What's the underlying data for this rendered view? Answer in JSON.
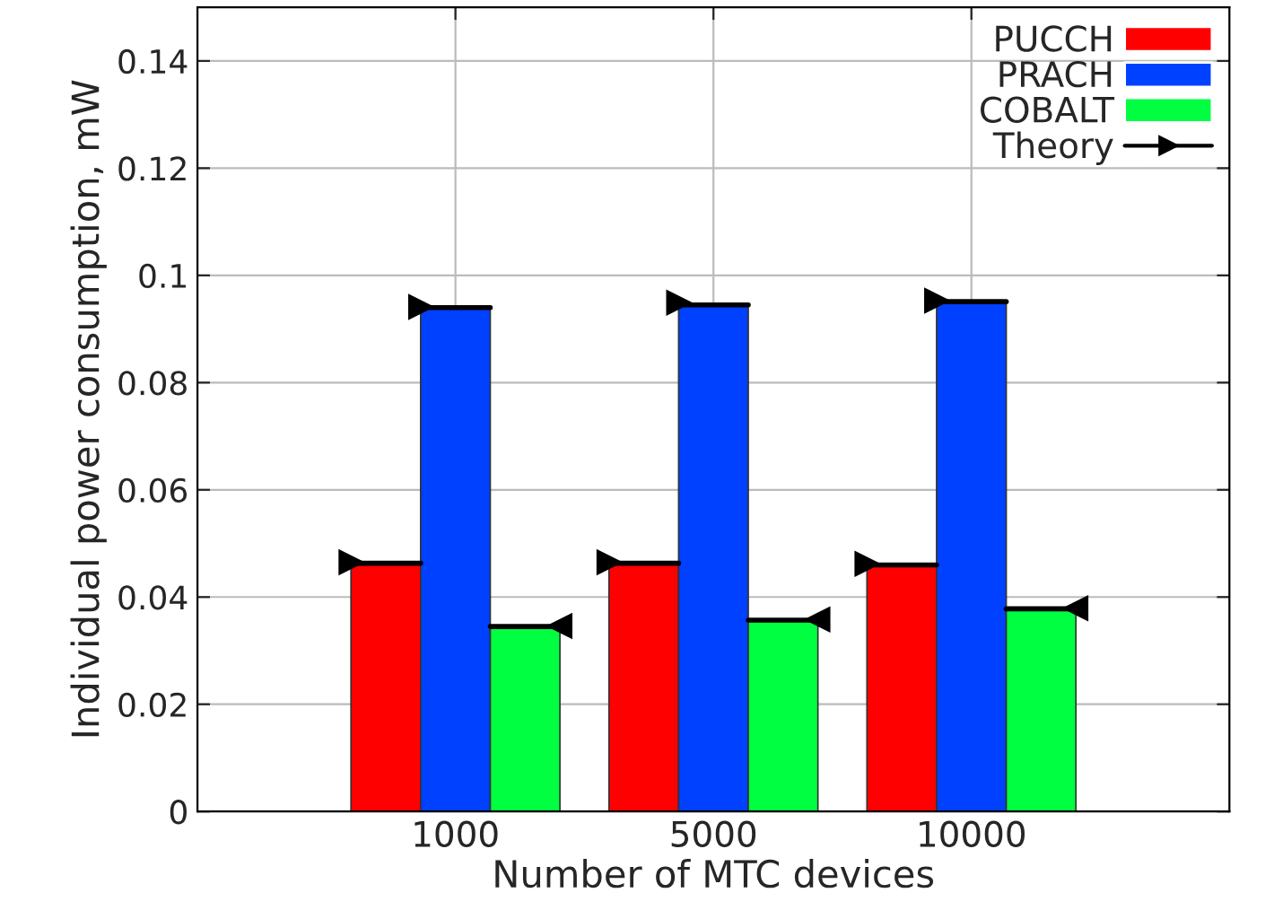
{
  "chart_data": {
    "type": "bar",
    "xlabel": "Number of MTC devices",
    "ylabel": "Individual power consumption, mW",
    "categories": [
      "1000",
      "5000",
      "10000"
    ],
    "series": [
      {
        "name": "PUCCH",
        "color": "#ff0000",
        "values": [
          0.0463,
          0.0463,
          0.046
        ]
      },
      {
        "name": "PRACH",
        "color": "#0040ff",
        "values": [
          0.094,
          0.0945,
          0.0951
        ]
      },
      {
        "name": "COBALT",
        "color": "#00ff40",
        "values": [
          0.0345,
          0.0357,
          0.0378
        ]
      },
      {
        "name": "Theory",
        "type": "scatter",
        "color": "#000000",
        "marker": "triangle",
        "values": [
          0.0465,
          0.0465,
          0.0462
        ]
      },
      {
        "type": "scatter",
        "color": "#000000",
        "marker": "triangle",
        "values": [
          0.0941,
          0.0949,
          0.0953
        ]
      },
      {
        "type": "scatter",
        "color": "#000000",
        "marker": "triangle",
        "values": [
          0.0346,
          0.0358,
          0.0379
        ]
      }
    ],
    "ylim": [
      0,
      0.15
    ],
    "yticks": [
      0,
      0.02,
      0.04,
      0.06,
      0.08,
      0.1,
      0.12,
      0.14
    ],
    "grid": true,
    "legend": "top right"
  }
}
